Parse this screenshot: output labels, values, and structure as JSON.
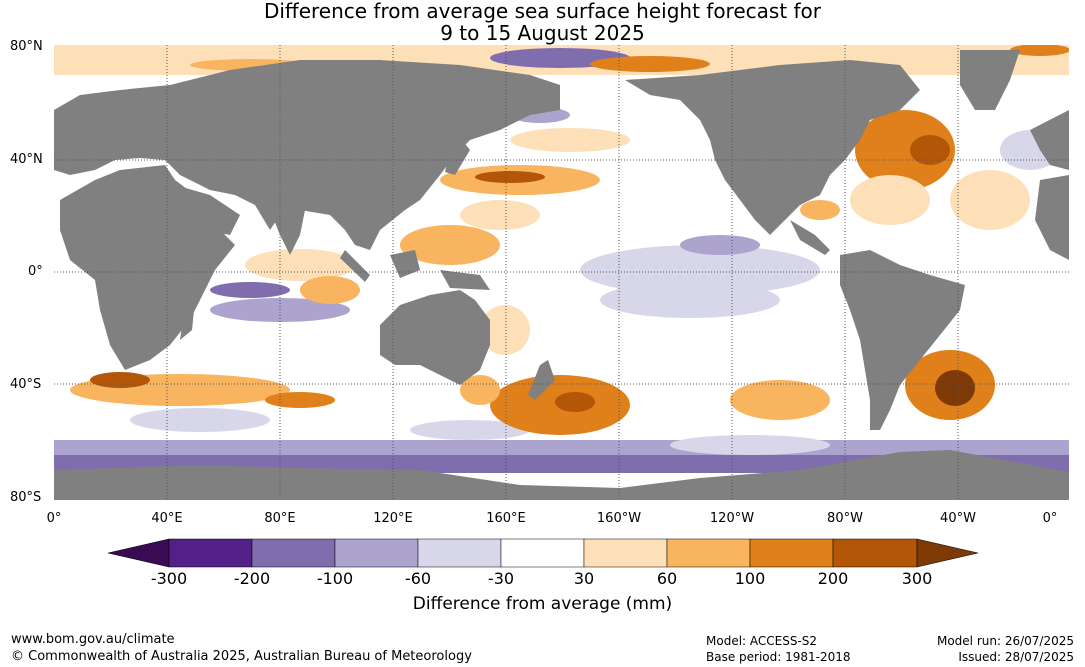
{
  "title": {
    "line1": "Difference from average sea surface height forecast for",
    "line2": "9 to 15 August 2025"
  },
  "latitude_labels": [
    "80°N",
    "40°N",
    "0°",
    "40°S",
    "80°S"
  ],
  "longitude_labels": [
    "0°",
    "40°E",
    "80°E",
    "120°E",
    "160°E",
    "160°W",
    "120°W",
    "80°W",
    "40°W",
    "0°"
  ],
  "colorbar": {
    "title": "Difference from average (mm)",
    "ticks": [
      "-300",
      "-200",
      "-100",
      "-60",
      "-30",
      "30",
      "60",
      "100",
      "200",
      "300"
    ],
    "colors": [
      "#3a0b55",
      "#532088",
      "#7f6dae",
      "#aca4cf",
      "#d8d7ea",
      "#ffffff",
      "#fde0b8",
      "#f9b45f",
      "#e0801a",
      "#b35608",
      "#7d3a06"
    ]
  },
  "colors": {
    "land": "#808080",
    "grid": "#555555"
  },
  "footer": {
    "website": "www.bom.gov.au/climate",
    "copyright": "© Commonwealth of Australia 2025, Australian Bureau of Meteorology",
    "model": "Model: ACCESS-S2",
    "base_period": "Base period: 1981-2018",
    "model_run": "Model run: 26/07/2025",
    "issued": "Issued: 28/07/2025"
  }
}
